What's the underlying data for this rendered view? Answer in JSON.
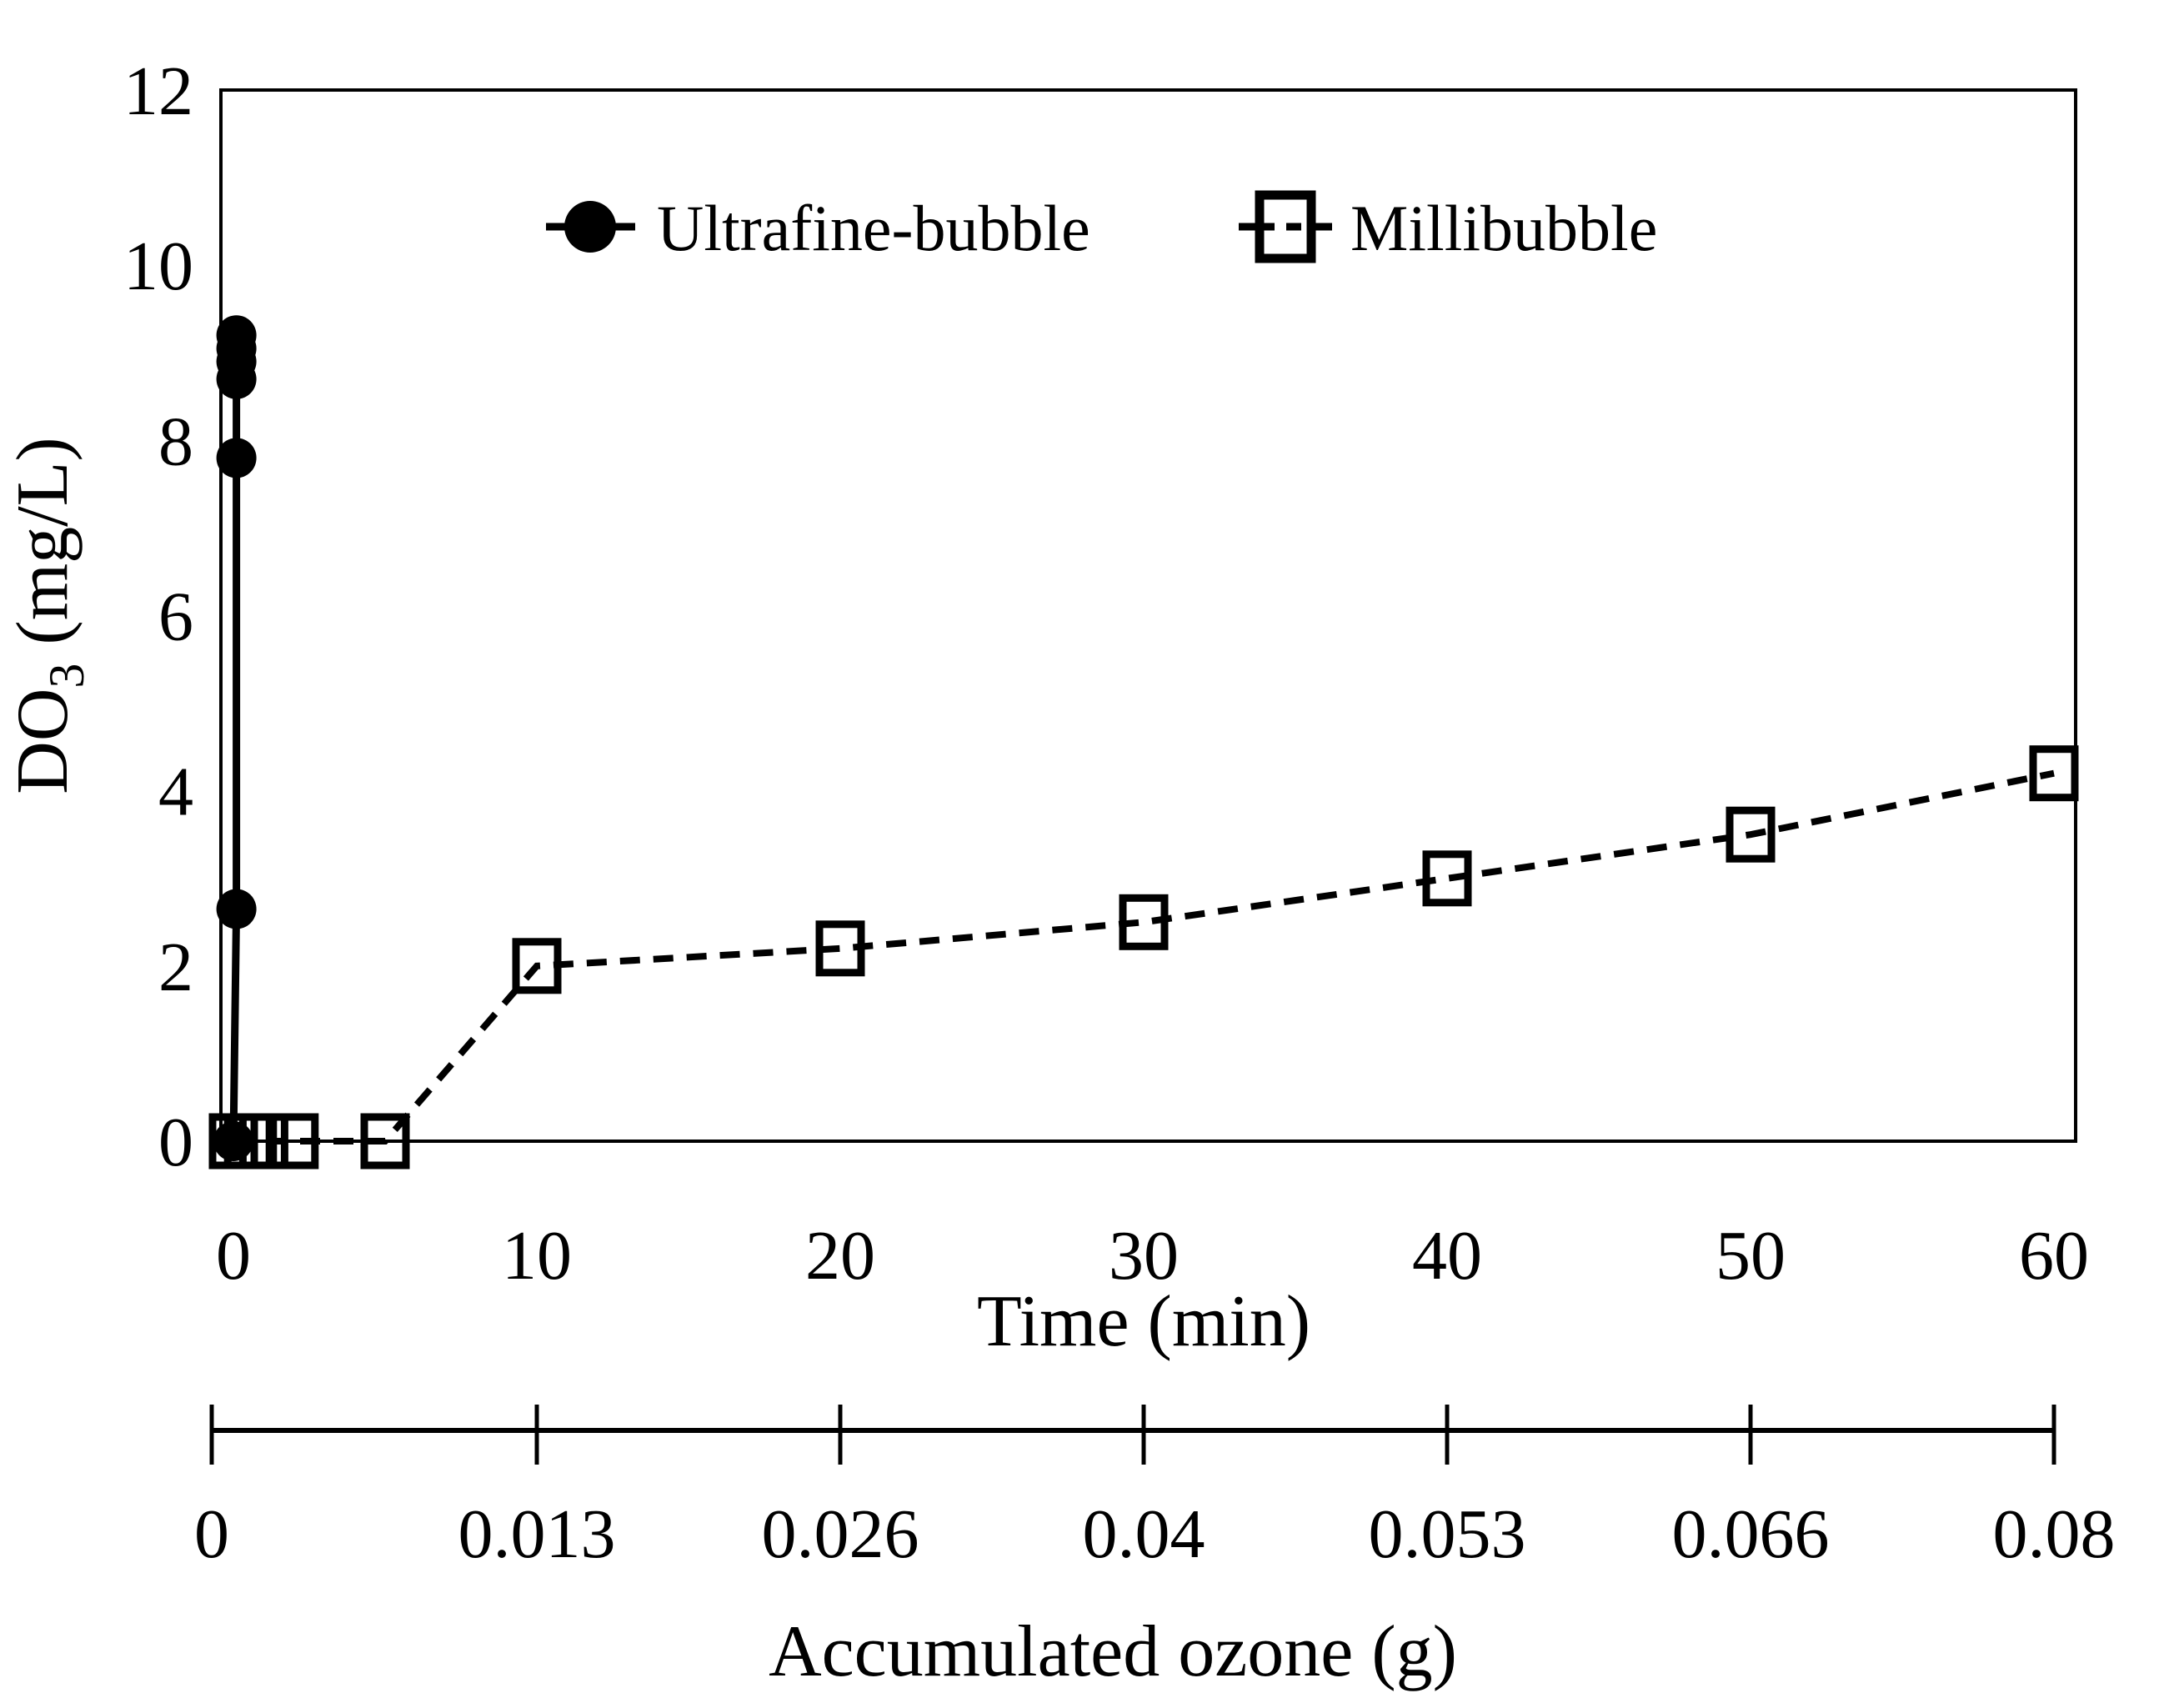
{
  "figure": {
    "background": "#ffffff",
    "ink": "#000000"
  },
  "chart_data": {
    "type": "line",
    "title": "",
    "x_axis": {
      "label": "Time (min)",
      "ticks": [
        0,
        10,
        20,
        30,
        40,
        50,
        60
      ],
      "range": [
        0,
        60
      ],
      "grid": false
    },
    "y_axis": {
      "label_main": "DO",
      "label_subscript": "3",
      "label_unit": " (mg/L)",
      "ticks": [
        12,
        10,
        8,
        6,
        4,
        2,
        0
      ],
      "range": [
        0,
        12
      ],
      "grid": false
    },
    "secondary_x_axis": {
      "label": "Accumulated ozone (g)",
      "tick_labels": [
        "0",
        "0.013",
        "0.026",
        "0.04",
        "0.053",
        "0.066",
        "0.08"
      ]
    },
    "legend": {
      "position": "top-inside",
      "entries": [
        "Ultrafine-bubble",
        "Millibubble"
      ]
    },
    "series": [
      {
        "name": "Ultrafine-bubble",
        "marker": "filled-circle",
        "line_style": "solid",
        "points": [
          [
            0,
            0
          ],
          [
            0.1,
            2.65
          ],
          [
            0.1,
            7.8
          ],
          [
            0.1,
            8.7
          ],
          [
            0.1,
            8.9
          ],
          [
            0.1,
            9.05
          ],
          [
            0.1,
            9.2
          ]
        ]
      },
      {
        "name": "Millibubble",
        "marker": "open-square",
        "line_style": "dashed",
        "points": [
          [
            0,
            0
          ],
          [
            0.5,
            0
          ],
          [
            1,
            0
          ],
          [
            2,
            0
          ],
          [
            5,
            0
          ],
          [
            10,
            2.0
          ],
          [
            20,
            2.2
          ],
          [
            30,
            2.5
          ],
          [
            40,
            3.0
          ],
          [
            50,
            3.5
          ],
          [
            60,
            4.2
          ]
        ]
      }
    ]
  }
}
